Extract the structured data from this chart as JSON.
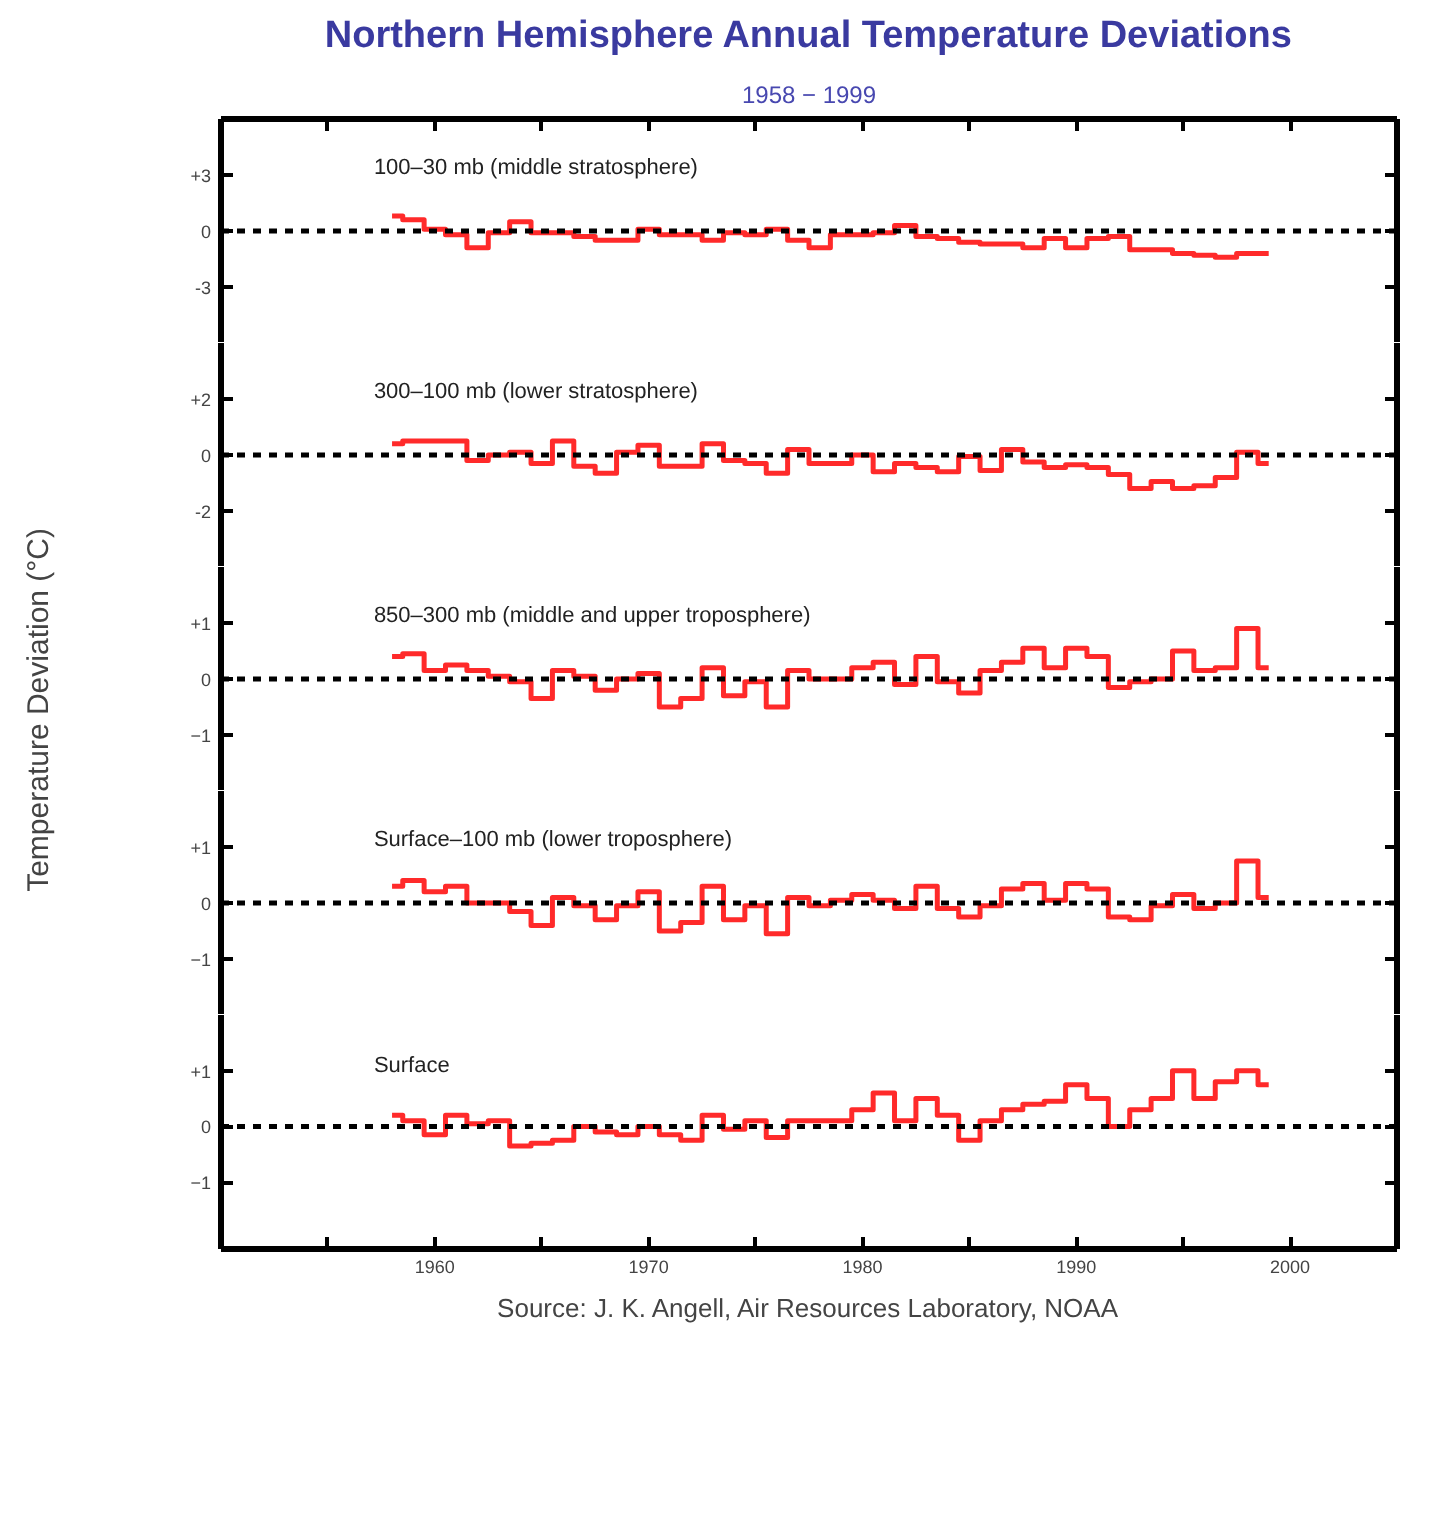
{
  "chart_data": [
    {
      "type": "step",
      "title": "Northern Hemisphere Annual Temperature Deviations",
      "subtitle": "1958 − 1999",
      "x": [
        1958,
        1959,
        1960,
        1961,
        1962,
        1963,
        1964,
        1965,
        1966,
        1967,
        1968,
        1969,
        1970,
        1971,
        1972,
        1973,
        1974,
        1975,
        1976,
        1977,
        1978,
        1979,
        1980,
        1981,
        1982,
        1983,
        1984,
        1985,
        1986,
        1987,
        1988,
        1989,
        1990,
        1991,
        1992,
        1993,
        1994,
        1995,
        1996,
        1997,
        1998,
        1999
      ],
      "xlim": [
        1950,
        2005
      ],
      "xticks": [
        {
          "value": 1955,
          "label": null
        },
        1960,
        {
          "value": 1965,
          "label": null
        },
        1970,
        {
          "value": 1975,
          "label": null
        },
        1980,
        {
          "value": 1985,
          "label": null
        },
        1990,
        {
          "value": 1995,
          "label": null
        },
        2000
      ],
      "ylim": [
        -6,
        6
      ],
      "yticks": [
        {
          "value": 3,
          "label": "+3"
        },
        0,
        -3
      ],
      "tick_labels": "y",
      "series": [
        {
          "color": "#ff2a2a",
          "values": [
            0.8,
            0.6,
            0.1,
            -0.2,
            -0.9,
            -0.1,
            0.5,
            -0.1,
            -0.1,
            -0.3,
            -0.5,
            -0.5,
            0.1,
            -0.2,
            -0.2,
            -0.5,
            -0.1,
            -0.2,
            0.1,
            -0.5,
            -0.9,
            -0.2,
            -0.2,
            -0.1,
            0.3,
            -0.3,
            -0.4,
            -0.6,
            -0.7,
            -0.7,
            -0.9,
            -0.4,
            -0.9,
            -0.4,
            -0.3,
            -1.0,
            -1.0,
            -1.2,
            -1.3,
            -1.4,
            -1.2,
            -1.2
          ]
        }
      ],
      "ref_lines": [
        {
          "axis": "y",
          "value": 0,
          "color": "#000000",
          "line_style": "dashed"
        }
      ],
      "annotations": [
        "100–30 mb  (middle stratosphere)"
      ]
    },
    {
      "type": "step",
      "x": [
        1958,
        1959,
        1960,
        1961,
        1962,
        1963,
        1964,
        1965,
        1966,
        1967,
        1968,
        1969,
        1970,
        1971,
        1972,
        1973,
        1974,
        1975,
        1976,
        1977,
        1978,
        1979,
        1980,
        1981,
        1982,
        1983,
        1984,
        1985,
        1986,
        1987,
        1988,
        1989,
        1990,
        1991,
        1992,
        1993,
        1994,
        1995,
        1996,
        1997,
        1998,
        1999
      ],
      "xlim": [
        1950,
        2005
      ],
      "ylim": [
        -4,
        4
      ],
      "yticks": [
        {
          "value": 2,
          "label": "+2"
        },
        0,
        -2
      ],
      "tick_labels": "y",
      "series": [
        {
          "color": "#ff2a2a",
          "values": [
            0.4,
            0.5,
            0.5,
            0.5,
            -0.2,
            0,
            0.1,
            -0.3,
            0.5,
            -0.4,
            -0.65,
            0.1,
            0.35,
            -0.4,
            -0.4,
            0.4,
            -0.2,
            -0.3,
            -0.65,
            0.2,
            -0.3,
            -0.3,
            0,
            -0.6,
            -0.3,
            -0.45,
            -0.6,
            -0.05,
            -0.55,
            0.2,
            -0.25,
            -0.45,
            -0.35,
            -0.45,
            -0.7,
            -1.2,
            -0.95,
            -1.2,
            -1.1,
            -0.8,
            0.1,
            -0.3
          ]
        }
      ],
      "ref_lines": [
        {
          "axis": "y",
          "value": 0,
          "color": "#000000",
          "line_style": "dashed"
        }
      ],
      "annotations": [
        "300–100 mb  (lower stratosphere)"
      ]
    },
    {
      "type": "step",
      "ylabel": "Temperature Deviation (°C)",
      "x": [
        1958,
        1959,
        1960,
        1961,
        1962,
        1963,
        1964,
        1965,
        1966,
        1967,
        1968,
        1969,
        1970,
        1971,
        1972,
        1973,
        1974,
        1975,
        1976,
        1977,
        1978,
        1979,
        1980,
        1981,
        1982,
        1983,
        1984,
        1985,
        1986,
        1987,
        1988,
        1989,
        1990,
        1991,
        1992,
        1993,
        1994,
        1995,
        1996,
        1997,
        1998,
        1999
      ],
      "xlim": [
        1950,
        2005
      ],
      "ylim": [
        -2,
        2
      ],
      "yticks": [
        {
          "value": 1,
          "label": "+1"
        },
        0,
        {
          "value": -1,
          "label": "−1"
        }
      ],
      "tick_labels": "y",
      "series": [
        {
          "color": "#ff2a2a",
          "values": [
            0.4,
            0.45,
            0.15,
            0.25,
            0.15,
            0.05,
            -0.05,
            -0.35,
            0.15,
            0.05,
            -0.2,
            0,
            0.1,
            -0.5,
            -0.35,
            0.2,
            -0.3,
            -0.05,
            -0.5,
            0.15,
            0,
            0,
            0.2,
            0.3,
            -0.1,
            0.4,
            -0.05,
            -0.25,
            0.15,
            0.3,
            0.55,
            0.2,
            0.55,
            0.4,
            -0.15,
            -0.05,
            0,
            0.5,
            0.15,
            0.2,
            0.9,
            0.2
          ]
        }
      ],
      "ref_lines": [
        {
          "axis": "y",
          "value": 0,
          "color": "#000000",
          "line_style": "dashed"
        }
      ],
      "annotations": [
        "850–300 mb  (middle and upper troposphere)"
      ]
    },
    {
      "type": "step",
      "x": [
        1958,
        1959,
        1960,
        1961,
        1962,
        1963,
        1964,
        1965,
        1966,
        1967,
        1968,
        1969,
        1970,
        1971,
        1972,
        1973,
        1974,
        1975,
        1976,
        1977,
        1978,
        1979,
        1980,
        1981,
        1982,
        1983,
        1984,
        1985,
        1986,
        1987,
        1988,
        1989,
        1990,
        1991,
        1992,
        1993,
        1994,
        1995,
        1996,
        1997,
        1998,
        1999
      ],
      "xlim": [
        1950,
        2005
      ],
      "ylim": [
        -2,
        2
      ],
      "yticks": [
        {
          "value": 1,
          "label": "+1"
        },
        0,
        {
          "value": -1,
          "label": "−1"
        }
      ],
      "tick_labels": "y",
      "series": [
        {
          "color": "#ff2a2a",
          "values": [
            0.3,
            0.4,
            0.2,
            0.3,
            0,
            0,
            -0.15,
            -0.4,
            0.1,
            -0.05,
            -0.3,
            -0.05,
            0.2,
            -0.5,
            -0.35,
            0.3,
            -0.3,
            -0.05,
            -0.55,
            0.1,
            -0.05,
            0.05,
            0.15,
            0.05,
            -0.1,
            0.3,
            -0.1,
            -0.25,
            -0.05,
            0.25,
            0.35,
            0.05,
            0.35,
            0.25,
            -0.25,
            -0.3,
            -0.05,
            0.15,
            -0.1,
            0,
            0.75,
            0.1
          ]
        }
      ],
      "ref_lines": [
        {
          "axis": "y",
          "value": 0,
          "color": "#000000",
          "line_style": "dashed"
        }
      ],
      "annotations": [
        "Surface–100 mb  (lower troposphere)"
      ]
    },
    {
      "type": "step",
      "x": [
        1958,
        1959,
        1960,
        1961,
        1962,
        1963,
        1964,
        1965,
        1966,
        1967,
        1968,
        1969,
        1970,
        1971,
        1972,
        1973,
        1974,
        1975,
        1976,
        1977,
        1978,
        1979,
        1980,
        1981,
        1982,
        1983,
        1984,
        1985,
        1986,
        1987,
        1988,
        1989,
        1990,
        1991,
        1992,
        1993,
        1994,
        1995,
        1996,
        1997,
        1998,
        1999
      ],
      "xlim": [
        1950,
        2005
      ],
      "xticks": [
        {
          "value": 1955,
          "label": null
        },
        1960,
        {
          "value": 1965,
          "label": null
        },
        1970,
        {
          "value": 1975,
          "label": null
        },
        1980,
        {
          "value": 1985,
          "label": null
        },
        1990,
        {
          "value": 1995,
          "label": null
        },
        2000
      ],
      "ylim": [
        -2.2,
        2
      ],
      "yticks": [
        {
          "value": 1,
          "label": "+1"
        },
        0,
        {
          "value": -1,
          "label": "−1"
        }
      ],
      "series": [
        {
          "color": "#ff2a2a",
          "values": [
            0.2,
            0.1,
            -0.15,
            0.2,
            0.05,
            0.1,
            -0.35,
            -0.3,
            -0.25,
            0,
            -0.1,
            -0.15,
            0,
            -0.15,
            -0.25,
            0.2,
            -0.05,
            0.1,
            -0.2,
            0.1,
            0.1,
            0.1,
            0.3,
            0.6,
            0.1,
            0.5,
            0.2,
            -0.25,
            0.1,
            0.3,
            0.4,
            0.45,
            0.75,
            0.5,
            0,
            0.3,
            0.5,
            1.0,
            0.5,
            0.8,
            1.0,
            0.75
          ]
        }
      ],
      "ref_lines": [
        {
          "axis": "y",
          "value": 0,
          "color": "#000000",
          "line_style": "dashed"
        }
      ],
      "annotations": [
        "Surface",
        "Source: J. K. Angell, Air Resources Laboratory, NOAA"
      ]
    }
  ]
}
